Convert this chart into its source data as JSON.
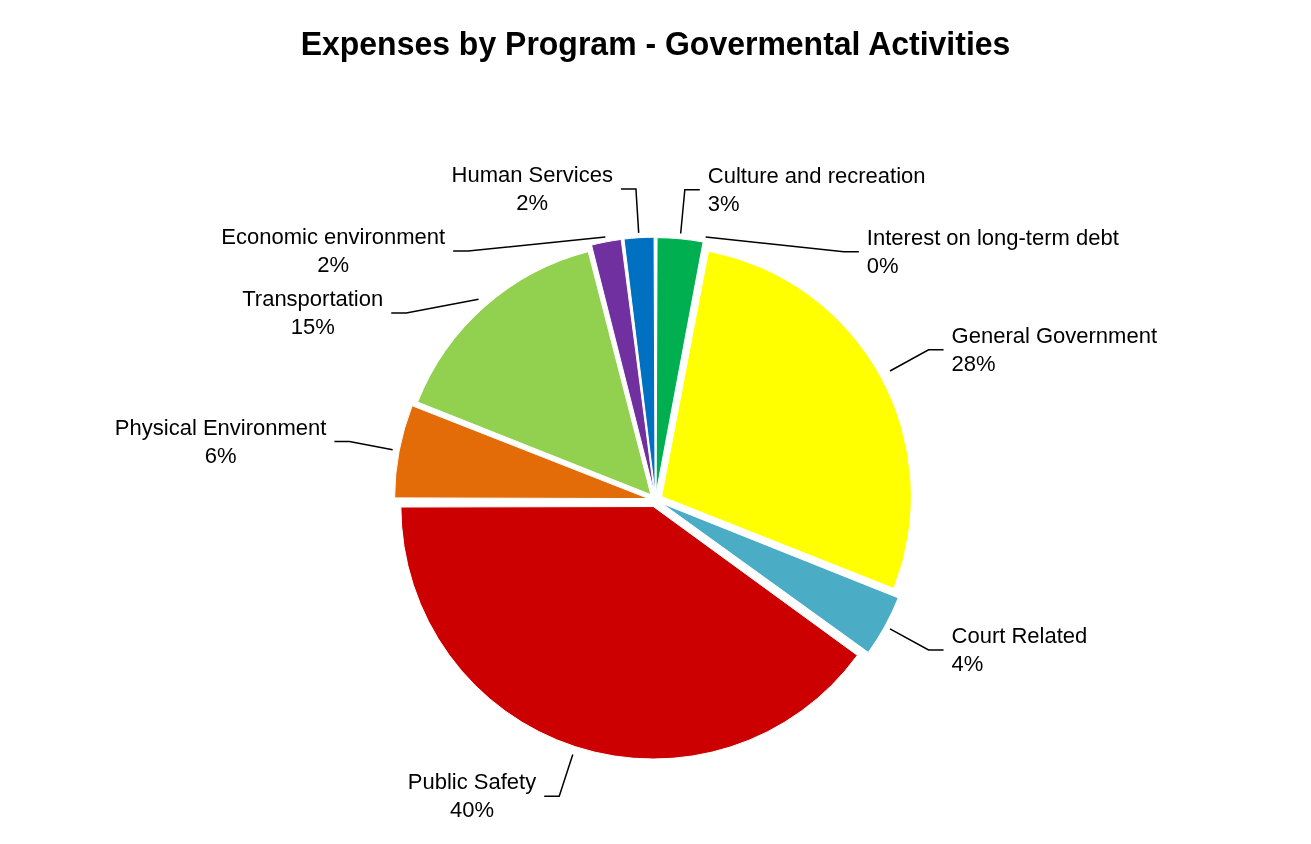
{
  "chart_data": {
    "type": "pie",
    "title": "Expenses by Program - Govermental Activities",
    "categories": [
      "Culture and recreation",
      "Interest on long-term debt",
      "General Government",
      "Court Related",
      "Public Safety",
      "Physical Environment",
      "Transportation",
      "Economic environment",
      "Human Services"
    ],
    "values": [
      3,
      0,
      28,
      4,
      40,
      6,
      15,
      2,
      2
    ],
    "value_labels": [
      "3%",
      "0%",
      "28%",
      "4%",
      "40%",
      "6%",
      "15%",
      "2%",
      "2%"
    ],
    "colors": [
      "#00b050",
      "#7f7f7f",
      "#ffff00",
      "#4bacc6",
      "#cc0000",
      "#e36c09",
      "#92d050",
      "#7030a0",
      "#0070c0"
    ],
    "legend": false
  }
}
